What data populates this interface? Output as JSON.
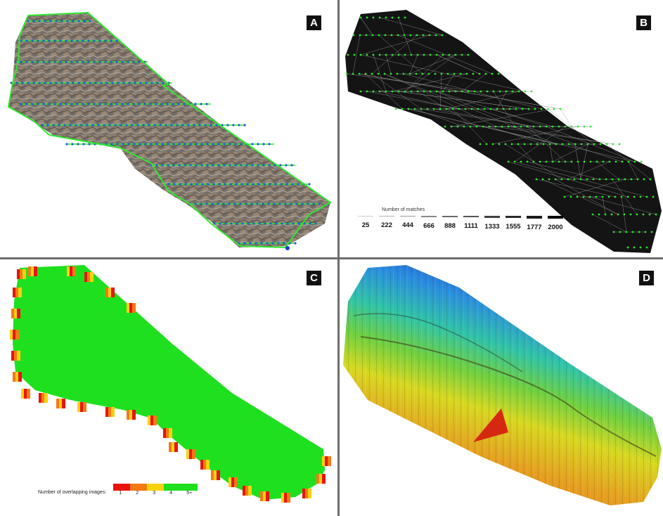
{
  "panels": {
    "a": {
      "letter": "A"
    },
    "b": {
      "letter": "B"
    },
    "c": {
      "letter": "C"
    },
    "d": {
      "letter": "D"
    }
  },
  "matches_legend": {
    "title": "Number of matches",
    "values": [
      "25",
      "222",
      "444",
      "666",
      "888",
      "1111",
      "1333",
      "1555",
      "1777",
      "2000"
    ]
  },
  "overlap_legend": {
    "title": "Number of overlapping images:",
    "items": [
      {
        "label": "1",
        "color": "#e8140c"
      },
      {
        "label": "2",
        "color": "#f47a14"
      },
      {
        "label": "3",
        "color": "#f7d20f"
      },
      {
        "label": "4",
        "color": "#1fe01f"
      },
      {
        "label": "5+",
        "color": "#1fe01f"
      }
    ]
  },
  "colors": {
    "camera_green": "#2ee82e",
    "overlap_main": "#1fe01f",
    "divider": "#6e6e6e"
  }
}
